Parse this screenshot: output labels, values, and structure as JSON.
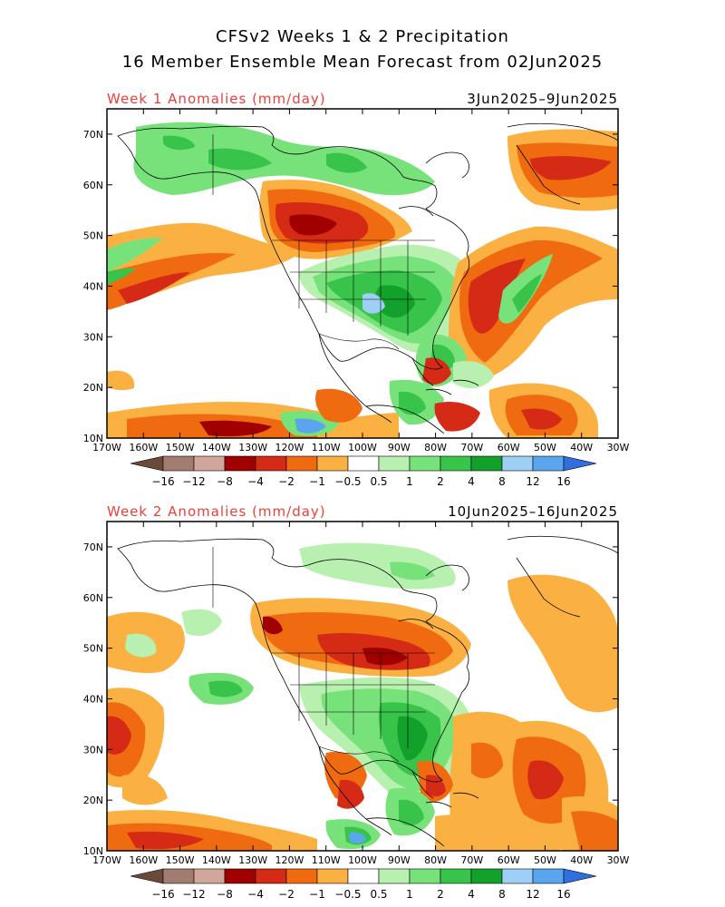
{
  "header": {
    "title_line1": "CFSv2 Weeks 1 & 2 Precipitation",
    "title_line2": "16 Member Ensemble Mean Forecast from 02Jun2025"
  },
  "panels": [
    {
      "id": "week1",
      "label": "Week 1 Anomalies (mm/day)",
      "dates": "3Jun2025–9Jun2025"
    },
    {
      "id": "week2",
      "label": "Week 2 Anomalies (mm/day)",
      "dates": "10Jun2025–16Jun2025"
    }
  ],
  "axes": {
    "lon_labels": [
      "170W",
      "160W",
      "150W",
      "140W",
      "130W",
      "120W",
      "110W",
      "100W",
      "90W",
      "80W",
      "70W",
      "60W",
      "50W",
      "40W",
      "30W"
    ],
    "lat_labels": [
      "70N",
      "60N",
      "50N",
      "40N",
      "30N",
      "20N",
      "10N"
    ],
    "lon_range": [
      -170,
      -30
    ],
    "lat_range": [
      10,
      75
    ]
  },
  "colorbar": {
    "tick_labels": [
      "−16",
      "−12",
      "−8",
      "−4",
      "−2",
      "−1",
      "−0.5",
      "0.5",
      "1",
      "2",
      "4",
      "8",
      "12",
      "16"
    ],
    "colors": {
      "below_16": "#6b4a3a",
      "m16_m12": "#a27d6f",
      "m12_m8": "#d2a79b",
      "m8_m4": "#a00000",
      "m4_m2": "#d42a16",
      "m2_m1": "#f06a10",
      "m1_m05": "#fbb042",
      "m05_05": "#ffffff",
      "p05_1": "#b8f0b0",
      "p1_2": "#78e27a",
      "p2_4": "#38c44a",
      "p4_8": "#12a12a",
      "p8_12": "#9ed0f6",
      "p12_16": "#5aa6ee",
      "above_16": "#2f6fe0"
    }
  }
}
